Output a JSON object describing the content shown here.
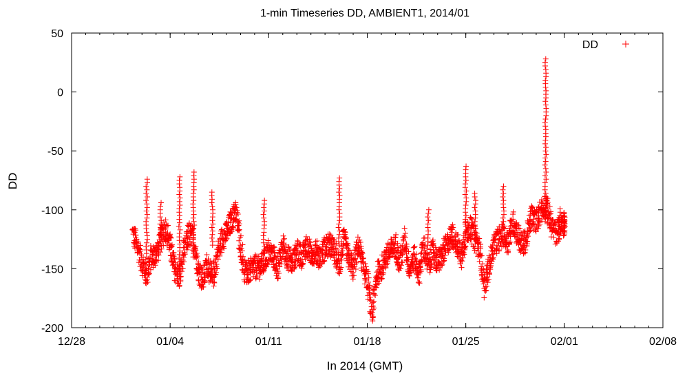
{
  "chart_data": {
    "type": "scatter",
    "title": "1-min Timeseries DD, AMBIENT1, 2014/01",
    "xlabel": "In 2014 (GMT)",
    "ylabel": "DD",
    "xlim": [
      "2013-12-28",
      "2014-02-08"
    ],
    "ylim": [
      -200,
      50
    ],
    "x_ticks": [
      "12/28",
      "01/04",
      "01/11",
      "01/18",
      "01/25",
      "02/01",
      "02/08"
    ],
    "y_ticks": [
      50,
      0,
      -50,
      -100,
      -150,
      -200
    ],
    "grid": false,
    "legend": {
      "position": "top-right",
      "entries": [
        "DD"
      ]
    },
    "marker": "+",
    "color": "#ff0000",
    "series": [
      {
        "name": "DD",
        "x": [
          "2014-01-01T08:00",
          "2014-01-01T16:00",
          "2014-01-02T00:00",
          "2014-01-02T08:00",
          "2014-01-02T16:00",
          "2014-01-03T00:00",
          "2014-01-03T08:00",
          "2014-01-03T16:00",
          "2014-01-04T00:00",
          "2014-01-04T08:00",
          "2014-01-04T16:00",
          "2014-01-05T00:00",
          "2014-01-05T08:00",
          "2014-01-05T16:00",
          "2014-01-06T00:00",
          "2014-01-06T08:00",
          "2014-01-06T16:00",
          "2014-01-07T00:00",
          "2014-01-07T08:00",
          "2014-01-07T16:00",
          "2014-01-08T00:00",
          "2014-01-08T08:00",
          "2014-01-08T16:00",
          "2014-01-09T00:00",
          "2014-01-09T08:00",
          "2014-01-09T16:00",
          "2014-01-10T00:00",
          "2014-01-10T08:00",
          "2014-01-10T16:00",
          "2014-01-11T00:00",
          "2014-01-11T08:00",
          "2014-01-11T16:00",
          "2014-01-12T00:00",
          "2014-01-12T08:00",
          "2014-01-12T16:00",
          "2014-01-13T00:00",
          "2014-01-13T08:00",
          "2014-01-13T16:00",
          "2014-01-14T00:00",
          "2014-01-14T08:00",
          "2014-01-14T16:00",
          "2014-01-15T00:00",
          "2014-01-15T08:00",
          "2014-01-15T16:00",
          "2014-01-16T00:00",
          "2014-01-16T08:00",
          "2014-01-16T16:00",
          "2014-01-17T00:00",
          "2014-01-17T08:00",
          "2014-01-17T16:00",
          "2014-01-18T00:00",
          "2014-01-18T08:00",
          "2014-01-18T16:00",
          "2014-01-19T00:00",
          "2014-01-19T08:00",
          "2014-01-19T16:00",
          "2014-01-20T00:00",
          "2014-01-20T08:00",
          "2014-01-20T16:00",
          "2014-01-21T00:00",
          "2014-01-21T08:00",
          "2014-01-21T16:00",
          "2014-01-22T00:00",
          "2014-01-22T08:00",
          "2014-01-22T16:00",
          "2014-01-23T00:00",
          "2014-01-23T08:00",
          "2014-01-23T16:00",
          "2014-01-24T00:00",
          "2014-01-24T08:00",
          "2014-01-24T16:00",
          "2014-01-25T00:00",
          "2014-01-25T08:00",
          "2014-01-25T16:00",
          "2014-01-26T00:00",
          "2014-01-26T08:00",
          "2014-01-26T16:00",
          "2014-01-27T00:00",
          "2014-01-27T08:00",
          "2014-01-27T16:00",
          "2014-01-28T00:00",
          "2014-01-28T08:00",
          "2014-01-28T16:00",
          "2014-01-29T00:00",
          "2014-01-29T08:00",
          "2014-01-29T16:00",
          "2014-01-30T00:00",
          "2014-01-30T08:00",
          "2014-01-30T16:00",
          "2014-01-31T00:00",
          "2014-01-31T08:00",
          "2014-01-31T16:00",
          "2014-02-01T00:00"
        ],
        "y": [
          -120,
          -130,
          -145,
          -155,
          -140,
          -138,
          -125,
          -115,
          -130,
          -150,
          -158,
          -135,
          -120,
          -125,
          -150,
          -160,
          -145,
          -160,
          -140,
          -125,
          -120,
          -110,
          -100,
          -130,
          -155,
          -152,
          -148,
          -150,
          -145,
          -135,
          -140,
          -150,
          -130,
          -140,
          -145,
          -135,
          -140,
          -130,
          -138,
          -135,
          -140,
          -132,
          -130,
          -135,
          -148,
          -125,
          -140,
          -150,
          -130,
          -145,
          -160,
          -190,
          -155,
          -150,
          -140,
          -135,
          -130,
          -145,
          -125,
          -150,
          -140,
          -155,
          -130,
          -148,
          -135,
          -145,
          -138,
          -130,
          -120,
          -128,
          -140,
          -120,
          -115,
          -125,
          -135,
          -165,
          -148,
          -130,
          -125,
          -120,
          -128,
          -110,
          -120,
          -130,
          -125,
          -105,
          -110,
          -100,
          -95,
          -110,
          -120,
          -115,
          -112
        ],
        "spikes": [
          {
            "x": "2014-01-02T08:00",
            "low": -140,
            "high": -73
          },
          {
            "x": "2014-01-03T08:00",
            "low": -130,
            "high": -92
          },
          {
            "x": "2014-01-04T16:00",
            "low": -150,
            "high": -70
          },
          {
            "x": "2014-01-05T16:00",
            "low": -140,
            "high": -68
          },
          {
            "x": "2014-01-07T00:00",
            "low": -130,
            "high": -83
          },
          {
            "x": "2014-01-10T16:00",
            "low": -140,
            "high": -92
          },
          {
            "x": "2014-01-16T00:00",
            "low": -130,
            "high": -73
          },
          {
            "x": "2014-01-22T08:00",
            "low": -130,
            "high": -98
          },
          {
            "x": "2014-01-25T00:00",
            "low": -120,
            "high": -63
          },
          {
            "x": "2014-01-25T16:00",
            "low": -125,
            "high": -85
          },
          {
            "x": "2014-01-27T16:00",
            "low": -110,
            "high": -80
          },
          {
            "x": "2014-01-30T16:00",
            "low": -110,
            "high": 30
          },
          {
            "x": "2014-01-31T16:00",
            "low": -120,
            "high": -98
          }
        ]
      }
    ]
  }
}
